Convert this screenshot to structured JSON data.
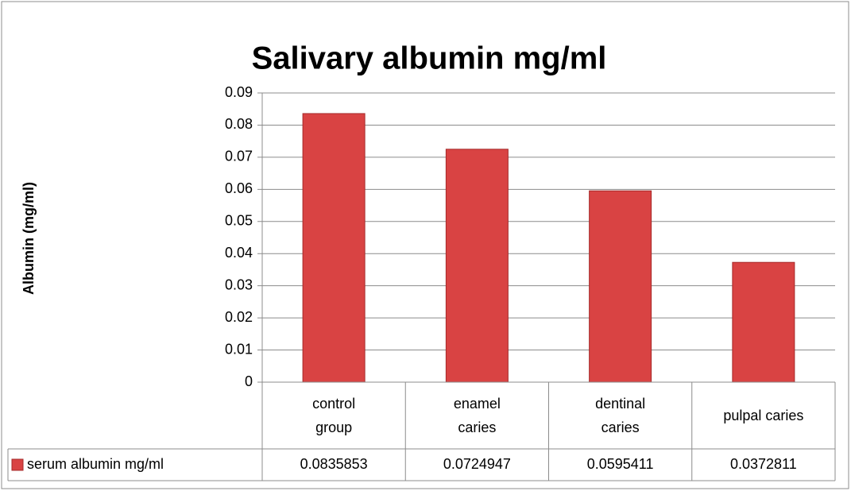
{
  "chart_data": {
    "type": "bar",
    "title": "Salivary albumin mg/ml",
    "y_label": "Albumin (mg/ml)",
    "categories": [
      "control group",
      "enamel caries",
      "dentinal caries",
      "pulpal caries"
    ],
    "series": [
      {
        "name": "serum albumin mg/ml",
        "color": "#d94343",
        "values": [
          0.0835853,
          0.0724947,
          0.0595411,
          0.0372811
        ]
      }
    ],
    "ylim": [
      0,
      0.09
    ],
    "yticks": [
      0,
      0.01,
      0.02,
      0.03,
      0.04,
      0.05,
      0.06,
      0.07,
      0.08,
      0.09
    ],
    "grid": true,
    "data_table": true
  }
}
